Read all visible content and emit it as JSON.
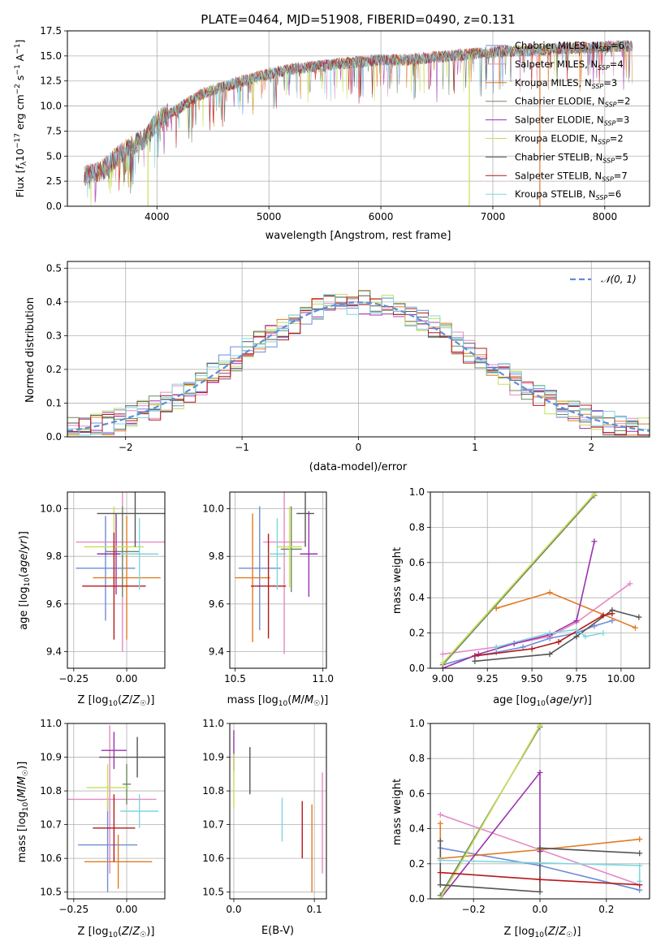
{
  "figure_title": "PLATE=0464, MJD=51908, FIBERID=0490, z=0.131",
  "colors": {
    "chabrier_miles": "#6c8ed6",
    "salpeter_miles": "#e58ac2",
    "kroupa_miles": "#e07b24",
    "chabrier_elodie": "#6f8a5e",
    "salpeter_elodie": "#9a33ad",
    "kroupa_elodie": "#c8de5a",
    "chabrier_stelib": "#555555",
    "salpeter_stelib": "#b5191b",
    "kroupa_stelib": "#7fd6de",
    "normal_fit": "#5b8fd6",
    "grid": "#b0b0b0"
  },
  "chart_data": [
    {
      "id": "spectrum",
      "type": "line",
      "title": "PLATE=0464, MJD=51908, FIBERID=0490, z=0.131",
      "xlabel": "wavelength [Angstrom, rest frame]",
      "ylabel": "Flux [f_λ 10^-17 erg cm^-2 s^-1 A^-1]",
      "xlim": [
        3200,
        8400
      ],
      "ylim": [
        0,
        17.5
      ],
      "xticks": [
        4000,
        5000,
        6000,
        7000,
        8000
      ],
      "yticks": [
        0.0,
        2.5,
        5.0,
        7.5,
        10.0,
        12.5,
        15.0,
        17.5
      ],
      "legend_position": "top-right",
      "series": [
        {
          "name": "Chabrier MILES, N_SSP=6",
          "color_key": "chabrier_miles"
        },
        {
          "name": "Salpeter MILES, N_SSP=4",
          "color_key": "salpeter_miles"
        },
        {
          "name": "Kroupa MILES, N_SSP=3",
          "color_key": "kroupa_miles"
        },
        {
          "name": "Chabrier ELODIE, N_SSP=2",
          "color_key": "chabrier_elodie"
        },
        {
          "name": "Salpeter ELODIE, N_SSP=3",
          "color_key": "salpeter_elodie"
        },
        {
          "name": "Kroupa ELODIE, N_SSP=2",
          "color_key": "kroupa_elodie"
        },
        {
          "name": "Chabrier STELIB, N_SSP=5",
          "color_key": "chabrier_stelib"
        },
        {
          "name": "Salpeter STELIB, N_SSP=7",
          "color_key": "salpeter_stelib"
        },
        {
          "name": "Kroupa STELIB, N_SSP=6",
          "color_key": "kroupa_stelib"
        }
      ],
      "continuum": {
        "x": [
          3350,
          3500,
          3600,
          3700,
          3800,
          3900,
          4000,
          4100,
          4200,
          4300,
          4400,
          4500,
          4600,
          4700,
          4800,
          4900,
          5000,
          5200,
          5400,
          5600,
          5800,
          6000,
          6200,
          6400,
          6600,
          6800,
          7000,
          7200,
          7400,
          7600,
          7800,
          8000,
          8200
        ],
        "y": [
          3.0,
          3.5,
          4.5,
          5.5,
          6.2,
          6.8,
          8.5,
          9.2,
          9.8,
          10.5,
          11.2,
          11.6,
          11.9,
          12.3,
          12.6,
          12.9,
          13.2,
          13.7,
          13.9,
          14.2,
          14.4,
          14.6,
          14.6,
          14.8,
          15.0,
          15.2,
          15.4,
          15.5,
          15.6,
          15.7,
          15.8,
          15.9,
          16.0
        ]
      },
      "drops": [
        {
          "x": 3920,
          "to": 0.0,
          "color_key": "kroupa_elodie"
        },
        {
          "x": 6790,
          "to": 0.0,
          "color_key": "kroupa_elodie"
        },
        {
          "x": 7420,
          "to": 0.0,
          "color_key": "kroupa_miles"
        }
      ]
    },
    {
      "id": "residuals",
      "type": "histogram",
      "xlabel": "(data-model)/error",
      "ylabel": "Normed distribution",
      "xlim": [
        -2.5,
        2.5
      ],
      "ylim": [
        0,
        0.52
      ],
      "xticks": [
        -2,
        -1,
        0,
        1,
        2
      ],
      "yticks": [
        0.0,
        0.1,
        0.2,
        0.3,
        0.4,
        0.5
      ],
      "bin_edges": [
        -2.5,
        -2.4,
        -2.3,
        -2.2,
        -2.1,
        -2.0,
        -1.9,
        -1.8,
        -1.7,
        -1.6,
        -1.5,
        -1.4,
        -1.3,
        -1.2,
        -1.1,
        -1.0,
        -0.9,
        -0.8,
        -0.7,
        -0.6,
        -0.5,
        -0.4,
        -0.3,
        -0.2,
        -0.1,
        0.0,
        0.1,
        0.2,
        0.3,
        0.4,
        0.5,
        0.6,
        0.7,
        0.8,
        0.9,
        1.0,
        1.1,
        1.2,
        1.3,
        1.4,
        1.5,
        1.6,
        1.7,
        1.8,
        1.9,
        2.0,
        2.1,
        2.2,
        2.3,
        2.4,
        2.5
      ],
      "legend_position": "top-right",
      "normal_fit": {
        "name": "𝒩(0, 1)",
        "color_key": "normal_fit",
        "style": "dashed"
      },
      "series_colors": [
        "chabrier_miles",
        "salpeter_miles",
        "kroupa_miles",
        "chabrier_elodie",
        "salpeter_elodie",
        "kroupa_elodie",
        "chabrier_stelib",
        "salpeter_stelib",
        "kroupa_stelib"
      ]
    },
    {
      "id": "age_vs_Z",
      "type": "errorbar",
      "xlabel": "Z [log10(Z/Z☉)]",
      "ylabel": "age [log10(age/yr)]",
      "xlim": [
        -0.28,
        0.18
      ],
      "ylim": [
        9.33,
        10.07
      ],
      "xticks": [
        -0.25,
        0.0
      ],
      "yticks": [
        9.4,
        9.6,
        9.8,
        10.0
      ],
      "points": [
        {
          "x": -0.1,
          "xerr": 0.14,
          "y": 9.75,
          "yerr": 0.22,
          "color_key": "chabrier_miles"
        },
        {
          "x": -0.02,
          "xerr": 0.22,
          "y": 9.86,
          "yerr": 0.46,
          "color_key": "salpeter_miles"
        },
        {
          "x": 0.0,
          "xerr": 0.16,
          "y": 9.71,
          "yerr": 0.26,
          "color_key": "kroupa_miles"
        },
        {
          "x": -0.02,
          "xerr": 0.08,
          "y": 9.82,
          "yerr": 0.19,
          "color_key": "chabrier_elodie"
        },
        {
          "x": -0.05,
          "xerr": 0.09,
          "y": 9.81,
          "yerr": 0.17,
          "color_key": "salpeter_elodie"
        },
        {
          "x": -0.06,
          "xerr": 0.14,
          "y": 9.84,
          "yerr": 0.17,
          "color_key": "kroupa_elodie"
        },
        {
          "x": 0.04,
          "xerr": 0.18,
          "y": 9.98,
          "yerr": 0.14,
          "color_key": "chabrier_stelib"
        },
        {
          "x": -0.06,
          "xerr": 0.15,
          "y": 9.675,
          "yerr": 0.225,
          "color_key": "salpeter_stelib"
        },
        {
          "x": 0.06,
          "xerr": 0.09,
          "y": 9.81,
          "yerr": 0.15,
          "color_key": "kroupa_stelib"
        }
      ]
    },
    {
      "id": "age_vs_mass",
      "type": "errorbar",
      "xlabel": "mass [log10(M/M☉)]",
      "xlim": [
        10.47,
        11.02
      ],
      "ylim": [
        9.33,
        10.07
      ],
      "xticks": [
        10.5,
        11.0
      ],
      "yticks": [
        9.4,
        9.6,
        9.8,
        10.0
      ],
      "points": [
        {
          "x": 10.64,
          "xerr": 0.12,
          "y": 9.75,
          "yerr": 0.26,
          "color_key": "chabrier_miles"
        },
        {
          "x": 10.78,
          "xerr": 0.12,
          "y": 9.86,
          "yerr": 0.47,
          "color_key": "salpeter_miles"
        },
        {
          "x": 10.6,
          "xerr": 0.1,
          "y": 9.71,
          "yerr": 0.27,
          "color_key": "kroupa_miles"
        },
        {
          "x": 10.82,
          "xerr": 0.06,
          "y": 9.83,
          "yerr": 0.18,
          "color_key": "chabrier_elodie"
        },
        {
          "x": 10.92,
          "xerr": 0.05,
          "y": 9.81,
          "yerr": 0.18,
          "color_key": "salpeter_elodie"
        },
        {
          "x": 10.81,
          "xerr": 0.07,
          "y": 9.84,
          "yerr": 0.17,
          "color_key": "kroupa_elodie"
        },
        {
          "x": 10.9,
          "xerr": 0.05,
          "y": 9.98,
          "yerr": 0.14,
          "color_key": "chabrier_stelib"
        },
        {
          "x": 10.69,
          "xerr": 0.1,
          "y": 9.675,
          "yerr": 0.22,
          "color_key": "salpeter_stelib"
        },
        {
          "x": 10.74,
          "xerr": 0.05,
          "y": 9.81,
          "yerr": 0.15,
          "color_key": "kroupa_stelib"
        }
      ]
    },
    {
      "id": "weight_vs_age",
      "type": "line",
      "xlabel": "age [log10(age/yr)]",
      "ylabel": "mass weight",
      "xlim": [
        8.93,
        10.16
      ],
      "ylim": [
        0,
        1
      ],
      "xticks": [
        9.0,
        9.25,
        9.5,
        9.75,
        10.0
      ],
      "yticks": [
        0.0,
        0.2,
        0.4,
        0.6,
        0.8,
        1.0
      ],
      "series": [
        {
          "color_key": "chabrier_miles",
          "x": [
            9.0,
            9.18,
            9.3,
            9.45,
            9.6,
            9.75,
            9.85,
            9.95
          ],
          "y": [
            0.02,
            0.07,
            0.09,
            0.12,
            0.17,
            0.2,
            0.24,
            0.27
          ]
        },
        {
          "color_key": "salpeter_miles",
          "x": [
            9.0,
            9.3,
            9.6,
            9.75,
            10.05
          ],
          "y": [
            0.08,
            0.12,
            0.18,
            0.26,
            0.48
          ]
        },
        {
          "color_key": "kroupa_miles",
          "x": [
            9.3,
            9.6,
            10.08
          ],
          "y": [
            0.34,
            0.43,
            0.23
          ]
        },
        {
          "color_key": "chabrier_elodie",
          "x": [
            9.0,
            9.85
          ],
          "y": [
            0.02,
            0.98
          ]
        },
        {
          "color_key": "salpeter_elodie",
          "x": [
            9.0,
            9.2,
            9.4,
            9.6,
            9.75,
            9.85
          ],
          "y": [
            0.0,
            0.08,
            0.14,
            0.19,
            0.27,
            0.72
          ]
        },
        {
          "color_key": "kroupa_elodie",
          "x": [
            9.0,
            9.85
          ],
          "y": [
            0.03,
            0.99
          ]
        },
        {
          "color_key": "chabrier_stelib",
          "x": [
            9.18,
            9.6,
            9.75,
            9.95,
            10.1
          ],
          "y": [
            0.04,
            0.08,
            0.18,
            0.33,
            0.29
          ]
        },
        {
          "color_key": "salpeter_stelib",
          "x": [
            9.18,
            9.5,
            9.65,
            9.9,
            9.95
          ],
          "y": [
            0.07,
            0.11,
            0.15,
            0.3,
            0.31
          ]
        },
        {
          "color_key": "kroupa_stelib",
          "x": [
            9.3,
            9.6,
            9.75,
            9.8,
            9.9
          ],
          "y": [
            0.12,
            0.2,
            0.22,
            0.18,
            0.2
          ]
        }
      ]
    },
    {
      "id": "mass_vs_Z",
      "type": "errorbar",
      "xlabel": "Z [log10(Z/Z☉)]",
      "ylabel": "mass [log10(M/M☉)]",
      "xlim": [
        -0.28,
        0.18
      ],
      "ylim": [
        10.48,
        11.0
      ],
      "xticks": [
        -0.25,
        0.0
      ],
      "yticks": [
        10.5,
        10.6,
        10.7,
        10.8,
        10.9,
        11.0
      ],
      "points": [
        {
          "x": -0.09,
          "xerr": 0.14,
          "y": 10.64,
          "yerr": 0.14,
          "color_key": "chabrier_miles"
        },
        {
          "x": -0.08,
          "xerr": 0.22,
          "y": 10.775,
          "yerr": 0.22,
          "color_key": "salpeter_miles"
        },
        {
          "x": -0.04,
          "xerr": 0.16,
          "y": 10.59,
          "yerr": 0.08,
          "color_key": "kroupa_miles"
        },
        {
          "x": 0.0,
          "xerr": 0.02,
          "y": 10.82,
          "yerr": 0.06,
          "color_key": "chabrier_elodie"
        },
        {
          "x": -0.06,
          "xerr": 0.06,
          "y": 10.92,
          "yerr": 0.055,
          "color_key": "salpeter_elodie"
        },
        {
          "x": -0.09,
          "xerr": 0.1,
          "y": 10.81,
          "yerr": 0.07,
          "color_key": "kroupa_elodie"
        },
        {
          "x": 0.05,
          "xerr": 0.18,
          "y": 10.9,
          "yerr": 0.06,
          "color_key": "chabrier_stelib"
        },
        {
          "x": -0.06,
          "xerr": 0.1,
          "y": 10.69,
          "yerr": 0.1,
          "color_key": "salpeter_stelib"
        },
        {
          "x": 0.06,
          "xerr": 0.09,
          "y": 10.74,
          "yerr": 0.05,
          "color_key": "kroupa_stelib"
        }
      ]
    },
    {
      "id": "mass_vs_ebv",
      "type": "errorbar",
      "xlabel": "E(B-V)",
      "xlim": [
        -0.005,
        0.115
      ],
      "ylim": [
        10.48,
        11.0
      ],
      "xticks": [
        0.0,
        0.1
      ],
      "yticks": [
        10.5,
        10.6,
        10.7,
        10.8,
        10.9,
        11.0
      ],
      "points": [
        {
          "x": 0.0,
          "y": 10.92,
          "yerr": 0.06,
          "color_key": "salpeter_elodie"
        },
        {
          "x": 0.0,
          "y": 10.83,
          "yerr": 0.08,
          "color_key": "kroupa_elodie"
        },
        {
          "x": 0.02,
          "y": 10.86,
          "yerr": 0.07,
          "color_key": "chabrier_stelib"
        },
        {
          "x": 0.06,
          "y": 10.715,
          "yerr": 0.065,
          "color_key": "kroupa_stelib"
        },
        {
          "x": 0.085,
          "y": 10.685,
          "yerr": 0.085,
          "color_key": "salpeter_stelib"
        },
        {
          "x": 0.097,
          "y": 10.63,
          "yerr": 0.13,
          "color_key": "kroupa_miles"
        },
        {
          "x": 0.11,
          "y": 10.705,
          "yerr": 0.15,
          "color_key": "salpeter_miles"
        }
      ]
    },
    {
      "id": "weight_vs_Z",
      "type": "line",
      "xlabel": "Z [log10(Z/Z☉)]",
      "ylabel": "mass weight",
      "xlim": [
        -0.33,
        0.33
      ],
      "ylim": [
        0,
        1
      ],
      "xticks": [
        -0.2,
        0.0,
        0.2
      ],
      "yticks": [
        0.0,
        0.2,
        0.4,
        0.6,
        0.8,
        1.0
      ],
      "series": [
        {
          "color_key": "chabrier_miles",
          "x": [
            -0.3,
            0.0,
            0.3
          ],
          "y": [
            0.29,
            0.19,
            0.05
          ]
        },
        {
          "color_key": "salpeter_miles",
          "x": [
            -0.3,
            0.3
          ],
          "y": [
            0.48,
            0.08
          ]
        },
        {
          "color_key": "kroupa_miles",
          "x": [
            -0.3,
            -0.3,
            0.0,
            0.3
          ],
          "y": [
            0.43,
            0.23,
            0.28,
            0.34
          ]
        },
        {
          "color_key": "chabrier_elodie",
          "x": [
            -0.3,
            0.0
          ],
          "y": [
            0.02,
            0.98
          ]
        },
        {
          "color_key": "salpeter_elodie",
          "x": [
            -0.3,
            0.0,
            0.0
          ],
          "y": [
            0.0,
            0.72,
            0.27
          ]
        },
        {
          "color_key": "kroupa_elodie",
          "x": [
            -0.3,
            0.0
          ],
          "y": [
            0.0,
            0.99
          ]
        },
        {
          "color_key": "chabrier_stelib",
          "x": [
            -0.3,
            -0.3,
            0.0,
            0.0,
            0.3
          ],
          "y": [
            0.33,
            0.08,
            0.04,
            0.29,
            0.26
          ]
        },
        {
          "color_key": "salpeter_stelib",
          "x": [
            -0.3,
            0.0,
            0.3
          ],
          "y": [
            0.15,
            0.11,
            0.08
          ]
        },
        {
          "color_key": "kroupa_stelib",
          "x": [
            -0.3,
            0.3,
            0.3
          ],
          "y": [
            0.22,
            0.19,
            0.1
          ]
        }
      ]
    }
  ],
  "tick_labels": {
    "spectrum_x": [
      "4000",
      "5000",
      "6000",
      "7000",
      "8000"
    ],
    "spectrum_y": [
      "0.0",
      "2.5",
      "5.0",
      "7.5",
      "10.0",
      "12.5",
      "15.0",
      "17.5"
    ],
    "residuals_x": [
      "−2",
      "−1",
      "0",
      "1",
      "2"
    ],
    "residuals_y": [
      "0.0",
      "0.1",
      "0.2",
      "0.3",
      "0.4",
      "0.5"
    ],
    "age_y": [
      "9.4",
      "9.6",
      "9.8",
      "10.0"
    ],
    "z_x": [
      "−0.25",
      "0.00"
    ],
    "mass_x": [
      "10.5",
      "11.0"
    ],
    "weight_age_x": [
      "9.00",
      "9.25",
      "9.50",
      "9.75",
      "10.00"
    ],
    "weight_y": [
      "0.0",
      "0.2",
      "0.4",
      "0.6",
      "0.8",
      "1.0"
    ],
    "mass_y": [
      "10.5",
      "10.6",
      "10.7",
      "10.8",
      "10.9",
      "11.0"
    ],
    "ebv_x": [
      "0.0",
      "0.1"
    ],
    "weight_z_x": [
      "−0.2",
      "0.0",
      "0.2"
    ]
  }
}
